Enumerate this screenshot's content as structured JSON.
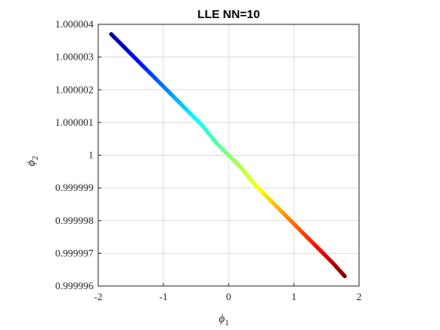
{
  "chart_data": {
    "type": "scatter",
    "title": "LLE NN=10",
    "xlabel": "ϕ",
    "xlabel_sub": "1",
    "ylabel": "ϕ",
    "ylabel_sub": "2",
    "xlim": [
      -2,
      2
    ],
    "ylim": [
      0.999996,
      1.000004
    ],
    "xticks": [
      -2,
      -1,
      0,
      1,
      2
    ],
    "xtick_labels": [
      "-2",
      "-1",
      "0",
      "1",
      "2"
    ],
    "yticks": [
      0.999996,
      0.999997,
      0.999998,
      0.999999,
      1,
      1.000001,
      1.000002,
      1.000003,
      1.000004
    ],
    "ytick_labels": [
      "0.999996",
      "0.999997",
      "0.999998",
      "0.999999",
      "1",
      "1.000001",
      "1.000002",
      "1.000003",
      "1.000004"
    ],
    "grid": true,
    "colormap": "jet",
    "series": [
      {
        "x": [
          -1.8,
          -1.6,
          -1.4,
          -1.2,
          -1.0,
          -0.8,
          -0.6,
          -0.4,
          -0.2,
          0.0,
          0.2,
          0.4,
          0.6,
          0.8,
          1.0,
          1.2,
          1.4,
          1.6,
          1.78
        ],
        "y": [
          1.0000037,
          1.0000033,
          1.0000029,
          1.0000025,
          1.0000021,
          1.0000017,
          1.0000013,
          1.0000009,
          1.0000004,
          1.0,
          0.9999996,
          0.9999991,
          0.9999987,
          0.9999983,
          0.9999979,
          0.9999975,
          0.9999971,
          0.9999967,
          0.9999963
        ]
      }
    ],
    "colors": {
      "axis": "#262626",
      "grid": "#dcdcdc",
      "colormap_stops": [
        "#00008f",
        "#0000ff",
        "#00ffff",
        "#7fff7f",
        "#ffff00",
        "#ff0000",
        "#800000"
      ]
    }
  }
}
